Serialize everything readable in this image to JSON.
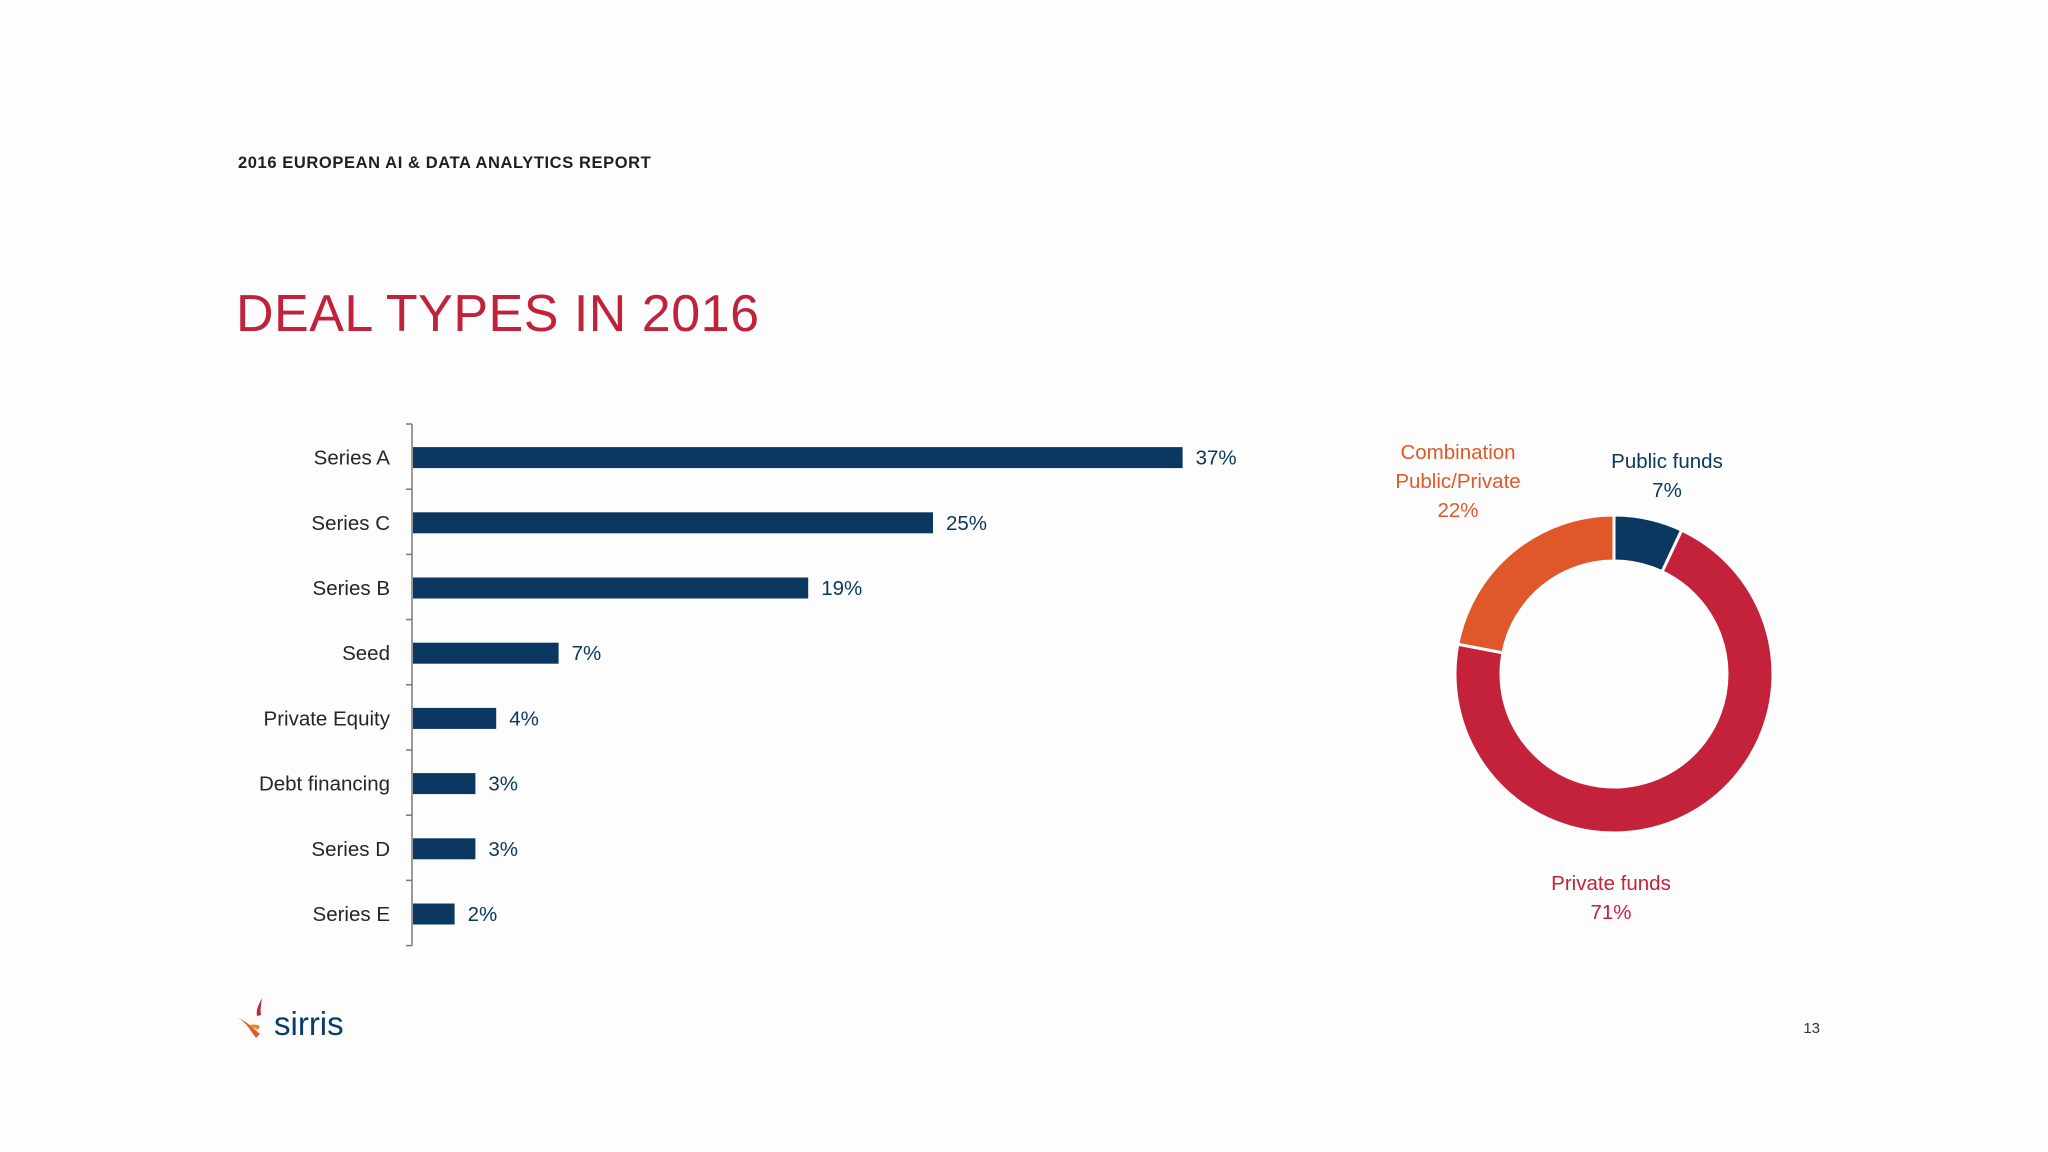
{
  "header": {
    "report_label": "2016 EUROPEAN AI & DATA ANALYTICS REPORT",
    "title": "DEAL TYPES IN 2016",
    "page_number": "13"
  },
  "logo": {
    "text": "sirris",
    "colors": {
      "mark_red": "#c0223b",
      "mark_orange": "#e05b26",
      "text": "#0b3d6b"
    }
  },
  "chart_data": [
    {
      "type": "bar",
      "orientation": "horizontal",
      "categories": [
        "Series A",
        "Series C",
        "Series B",
        "Seed",
        "Private Equity",
        "Debt financing",
        "Series D",
        "Series E"
      ],
      "values": [
        37,
        25,
        19,
        7,
        4,
        3,
        3,
        2
      ],
      "value_labels": [
        "37%",
        "25%",
        "19%",
        "7%",
        "4%",
        "3%",
        "3%",
        "2%"
      ],
      "unit": "%",
      "xlim": [
        0,
        40
      ],
      "grid": false,
      "color": "#0b3860"
    },
    {
      "type": "pie",
      "style": "donut",
      "slices": [
        {
          "name": "Public funds",
          "value": 7,
          "label": "7%",
          "color": "#0b3860"
        },
        {
          "name": "Private funds",
          "value": 71,
          "label": "71%",
          "color": "#c4223b"
        },
        {
          "name": "Combination Public/Private",
          "name_lines": [
            "Combination",
            "Public/Private"
          ],
          "value": 22,
          "label": "22%",
          "color": "#e0582a"
        }
      ],
      "start_angle": "12 o'clock",
      "direction": "clockwise"
    }
  ]
}
